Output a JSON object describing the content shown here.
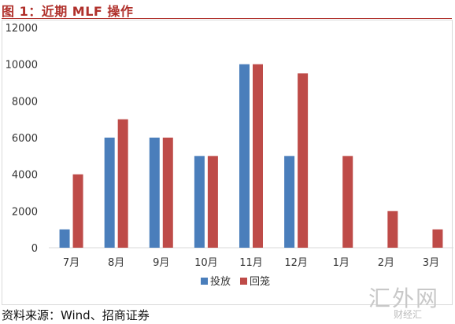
{
  "header": {
    "title": "图 1：近期 MLF 操作"
  },
  "footer": {
    "source": "资料来源：Wind、招商证券"
  },
  "watermark": {
    "main": "汇外网",
    "sub": "财经汇"
  },
  "colors": {
    "title": "#b0302b",
    "series_1": "#4a7ebb",
    "series_2": "#be4b48"
  },
  "chart_data": {
    "type": "bar",
    "categories": [
      "7月",
      "8月",
      "9月",
      "10月",
      "11月",
      "12月",
      "1月",
      "2月",
      "3月"
    ],
    "series": [
      {
        "name": "投放",
        "values": [
          1000,
          6000,
          6000,
          5000,
          10000,
          5000,
          0,
          0,
          0
        ]
      },
      {
        "name": "回笼",
        "values": [
          4000,
          7000,
          6000,
          5000,
          10000,
          9500,
          5000,
          2000,
          1000
        ]
      }
    ],
    "ylim": [
      0,
      12000
    ],
    "yticks": [
      0,
      2000,
      4000,
      6000,
      8000,
      10000,
      12000
    ],
    "grid": false,
    "legend": "bottom"
  }
}
